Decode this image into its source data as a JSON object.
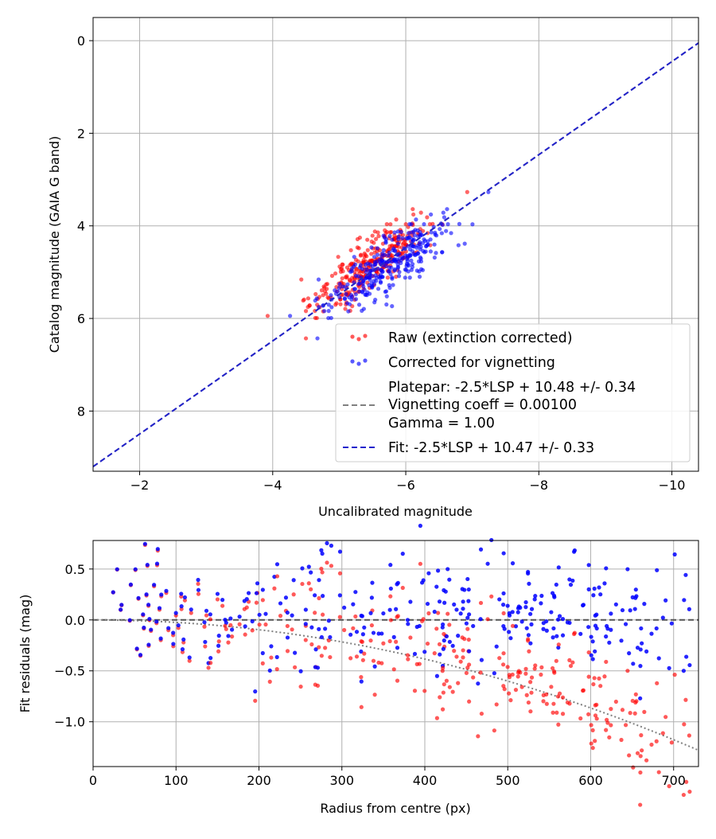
{
  "chart_data": [
    {
      "type": "scatter",
      "xlabel": "Uncalibrated magnitude",
      "ylabel": "Catalog magnitude (GAIA G band)",
      "xlim": [
        -1.3,
        -10.4
      ],
      "ylim": [
        9.3,
        -0.5
      ],
      "xticks": [
        -2,
        -4,
        -6,
        -8,
        -10
      ],
      "xtick_labels": [
        "−2",
        "−4",
        "−6",
        "−8",
        "−10"
      ],
      "yticks": [
        0,
        2,
        4,
        6,
        8
      ],
      "ytick_labels": [
        "0",
        "2",
        "4",
        "6",
        "8"
      ],
      "grid": true,
      "legend_position": "lower-right",
      "series": [
        {
          "name": "Raw (extinction corrected)",
          "color": "#ff0000",
          "kind": "scatter",
          "count": 310,
          "x_center": -5.45,
          "y_center": 4.95
        },
        {
          "name": "Corrected for vignetting",
          "color": "#0000ff",
          "kind": "scatter",
          "count": 310,
          "x_center": -5.6,
          "y_center": 4.95
        },
        {
          "name": "Platepar: -2.5*LSP + 10.48 +/- 0.34\nVignetting coeff = 0.00100\nGamma = 1.00",
          "color": "#808080",
          "kind": "line",
          "slope": -2.5,
          "intercept": 10.48
        },
        {
          "name": "Fit: -2.5*LSP + 10.47 +/- 0.33",
          "color": "#2222cc",
          "kind": "dashed-line",
          "slope": -2.5,
          "intercept": 10.47
        }
      ],
      "legend_lines": {
        "raw": "Raw (extinction corrected)",
        "corrected": "Corrected for vignetting",
        "platepar_1": "Platepar: -2.5*LSP + 10.48 +/- 0.34",
        "platepar_2": "Vignetting coeff = 0.00100",
        "platepar_3": "Gamma = 1.00",
        "fit": "Fit: -2.5*LSP + 10.47 +/- 0.33"
      }
    },
    {
      "type": "scatter",
      "xlabel": "Radius from centre (px)",
      "ylabel": "Fit residuals (mag)",
      "xlim": [
        0,
        730
      ],
      "ylim": [
        -1.44,
        0.78
      ],
      "xticks": [
        0,
        100,
        200,
        300,
        400,
        500,
        600,
        700
      ],
      "xtick_labels": [
        "0",
        "100",
        "200",
        "300",
        "400",
        "500",
        "600",
        "700"
      ],
      "yticks": [
        0.5,
        0.0,
        -0.5,
        -1.0
      ],
      "ytick_labels": [
        "0.5",
        "0.0",
        "−0.5",
        "−1.0"
      ],
      "grid": true,
      "reference_lines": [
        {
          "kind": "dashed",
          "color": "#555555",
          "y": 0.0
        },
        {
          "kind": "dotted",
          "color": "#808080",
          "description": "vignetting curve",
          "x_start": 0,
          "x_end": 730,
          "y_start": 0.0,
          "y_end": -1.28
        }
      ],
      "series": [
        {
          "name": "Raw residuals",
          "color": "#ff0000",
          "count": 310
        },
        {
          "name": "Corrected residuals",
          "color": "#0000ff",
          "count": 310
        }
      ]
    }
  ]
}
